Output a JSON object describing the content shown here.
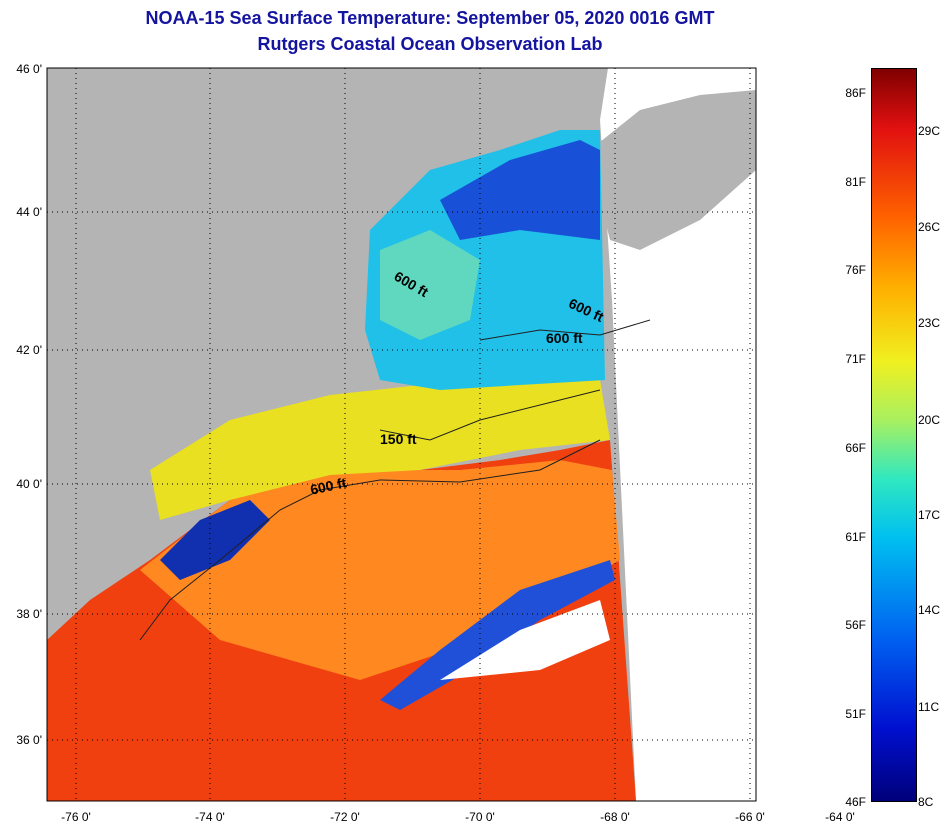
{
  "title_line1": "NOAA-15 Sea Surface Temperature:  September 05, 2020 0016 GMT",
  "title_line2": "Rutgers Coastal Ocean Observation Lab",
  "y_ticks": [
    "46 0'",
    "44 0'",
    "42 0'",
    "40 0'",
    "38 0'",
    "36 0'"
  ],
  "x_ticks": [
    "-76 0'",
    "-74 0'",
    "-72 0'",
    "-70 0'",
    "-68 0'",
    "-66 0'",
    "-64 0'"
  ],
  "contour_labels": [
    "600 ft",
    "600 ft",
    "600 ft",
    "150 ft",
    "600 ft"
  ],
  "colorbar_f": [
    "86F",
    "81F",
    "76F",
    "71F",
    "66F",
    "61F",
    "56F",
    "51F",
    "46F"
  ],
  "colorbar_c": [
    "29C",
    "26C",
    "23C",
    "20C",
    "17C",
    "14C",
    "11C",
    "8C"
  ],
  "colors": {
    "title": "#1414a0",
    "land": "#b4b4b4",
    "nodata": "#ffffff"
  }
}
